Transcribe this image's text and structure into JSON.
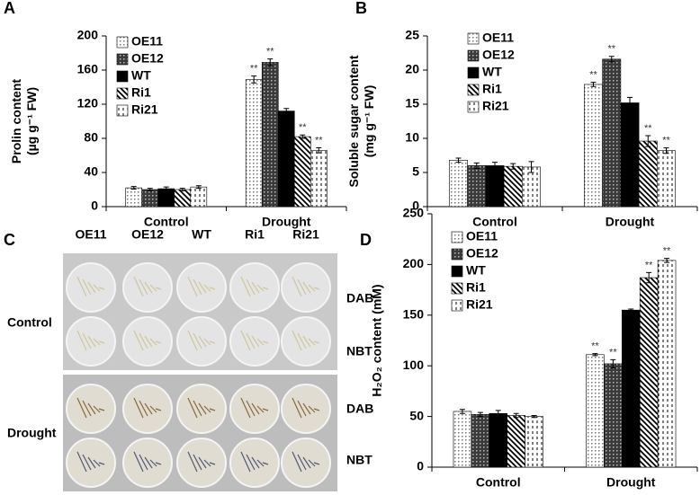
{
  "chart_data": [
    {
      "panel": "A",
      "type": "bar",
      "categories": [
        "Control",
        "Drought"
      ],
      "ylabel": [
        "Prolin content",
        "(µg g⁻¹ FW)"
      ],
      "ylim": [
        0,
        200
      ],
      "yticks": [
        0,
        40,
        80,
        120,
        160,
        200
      ],
      "legend": "upper center",
      "series": [
        {
          "name": "OE11",
          "color": "#d8d8d8",
          "pattern": "dots-light",
          "values": [
            22,
            149
          ],
          "errors": [
            1.5,
            4
          ],
          "significance": [
            null,
            "**"
          ]
        },
        {
          "name": "OE12",
          "color": "#3a3a3a",
          "pattern": "dots-dark",
          "values": [
            20,
            169
          ],
          "errors": [
            1.5,
            4
          ],
          "significance": [
            null,
            "**"
          ]
        },
        {
          "name": "WT",
          "color": "#000000",
          "pattern": "solid",
          "values": [
            21,
            112
          ],
          "errors": [
            2,
            3
          ],
          "significance": [
            null,
            null
          ]
        },
        {
          "name": "Ri1",
          "color": "#ffffff",
          "pattern": "hatch",
          "values": [
            20,
            82
          ],
          "errors": [
            1.5,
            2
          ],
          "significance": [
            null,
            "**"
          ]
        },
        {
          "name": "Ri21",
          "color": "#ffffff",
          "pattern": "dashes",
          "values": [
            23,
            66
          ],
          "errors": [
            1.5,
            3
          ],
          "significance": [
            null,
            "**"
          ]
        }
      ]
    },
    {
      "panel": "B",
      "type": "bar",
      "categories": [
        "Control",
        "Drought"
      ],
      "ylabel": [
        "Soluble sugar content",
        "(mg g⁻¹ FW)"
      ],
      "ylim": [
        0,
        25
      ],
      "yticks": [
        0,
        5,
        10,
        15,
        20,
        25
      ],
      "legend": "upper center",
      "series": [
        {
          "name": "OE11",
          "color": "#d8d8d8",
          "pattern": "dots-light",
          "values": [
            6.8,
            17.9
          ],
          "errors": [
            0.3,
            0.3
          ],
          "significance": [
            null,
            "**"
          ]
        },
        {
          "name": "OE12",
          "color": "#3a3a3a",
          "pattern": "dots-dark",
          "values": [
            6.0,
            21.6
          ],
          "errors": [
            0.4,
            0.4
          ],
          "significance": [
            null,
            "**"
          ]
        },
        {
          "name": "WT",
          "color": "#000000",
          "pattern": "solid",
          "values": [
            6.0,
            15.2
          ],
          "errors": [
            0.5,
            0.8
          ],
          "significance": [
            null,
            null
          ]
        },
        {
          "name": "Ri1",
          "color": "#ffffff",
          "pattern": "hatch",
          "values": [
            5.9,
            9.6
          ],
          "errors": [
            0.4,
            0.8
          ],
          "significance": [
            null,
            "**"
          ]
        },
        {
          "name": "Ri21",
          "color": "#ffffff",
          "pattern": "dashes",
          "values": [
            5.8,
            8.2
          ],
          "errors": [
            0.8,
            0.4
          ],
          "significance": [
            null,
            "**"
          ]
        }
      ]
    },
    {
      "panel": "D",
      "type": "bar",
      "categories": [
        "Control",
        "Drought"
      ],
      "ylabel": [
        "H₂O₂ content (mM)"
      ],
      "ylim": [
        0,
        250
      ],
      "yticks": [
        0,
        50,
        100,
        150,
        200,
        250
      ],
      "legend": "upper left",
      "series": [
        {
          "name": "OE11",
          "color": "#d8d8d8",
          "pattern": "dots-light",
          "values": [
            55,
            111
          ],
          "errors": [
            2,
            1
          ],
          "significance": [
            null,
            "**"
          ]
        },
        {
          "name": "OE12",
          "color": "#3a3a3a",
          "pattern": "dots-dark",
          "values": [
            52,
            102
          ],
          "errors": [
            2,
            4
          ],
          "significance": [
            null,
            "**"
          ]
        },
        {
          "name": "WT",
          "color": "#000000",
          "pattern": "solid",
          "values": [
            53,
            155
          ],
          "errors": [
            3,
            1
          ],
          "significance": [
            null,
            null
          ]
        },
        {
          "name": "Ri1",
          "color": "#ffffff",
          "pattern": "hatch",
          "values": [
            51,
            187
          ],
          "errors": [
            2,
            5
          ],
          "significance": [
            null,
            "**"
          ]
        },
        {
          "name": "Ri21",
          "color": "#ffffff",
          "pattern": "dashes",
          "values": [
            50,
            204
          ],
          "errors": [
            1,
            2
          ],
          "significance": [
            null,
            "**"
          ]
        }
      ]
    }
  ],
  "panel_c": {
    "label": "C",
    "columns": [
      "OE11",
      "OE12",
      "WT",
      "Ri1",
      "Ri21"
    ],
    "rows": [
      "Control",
      "Drought"
    ],
    "stains": [
      "DAB",
      "NBT"
    ]
  }
}
